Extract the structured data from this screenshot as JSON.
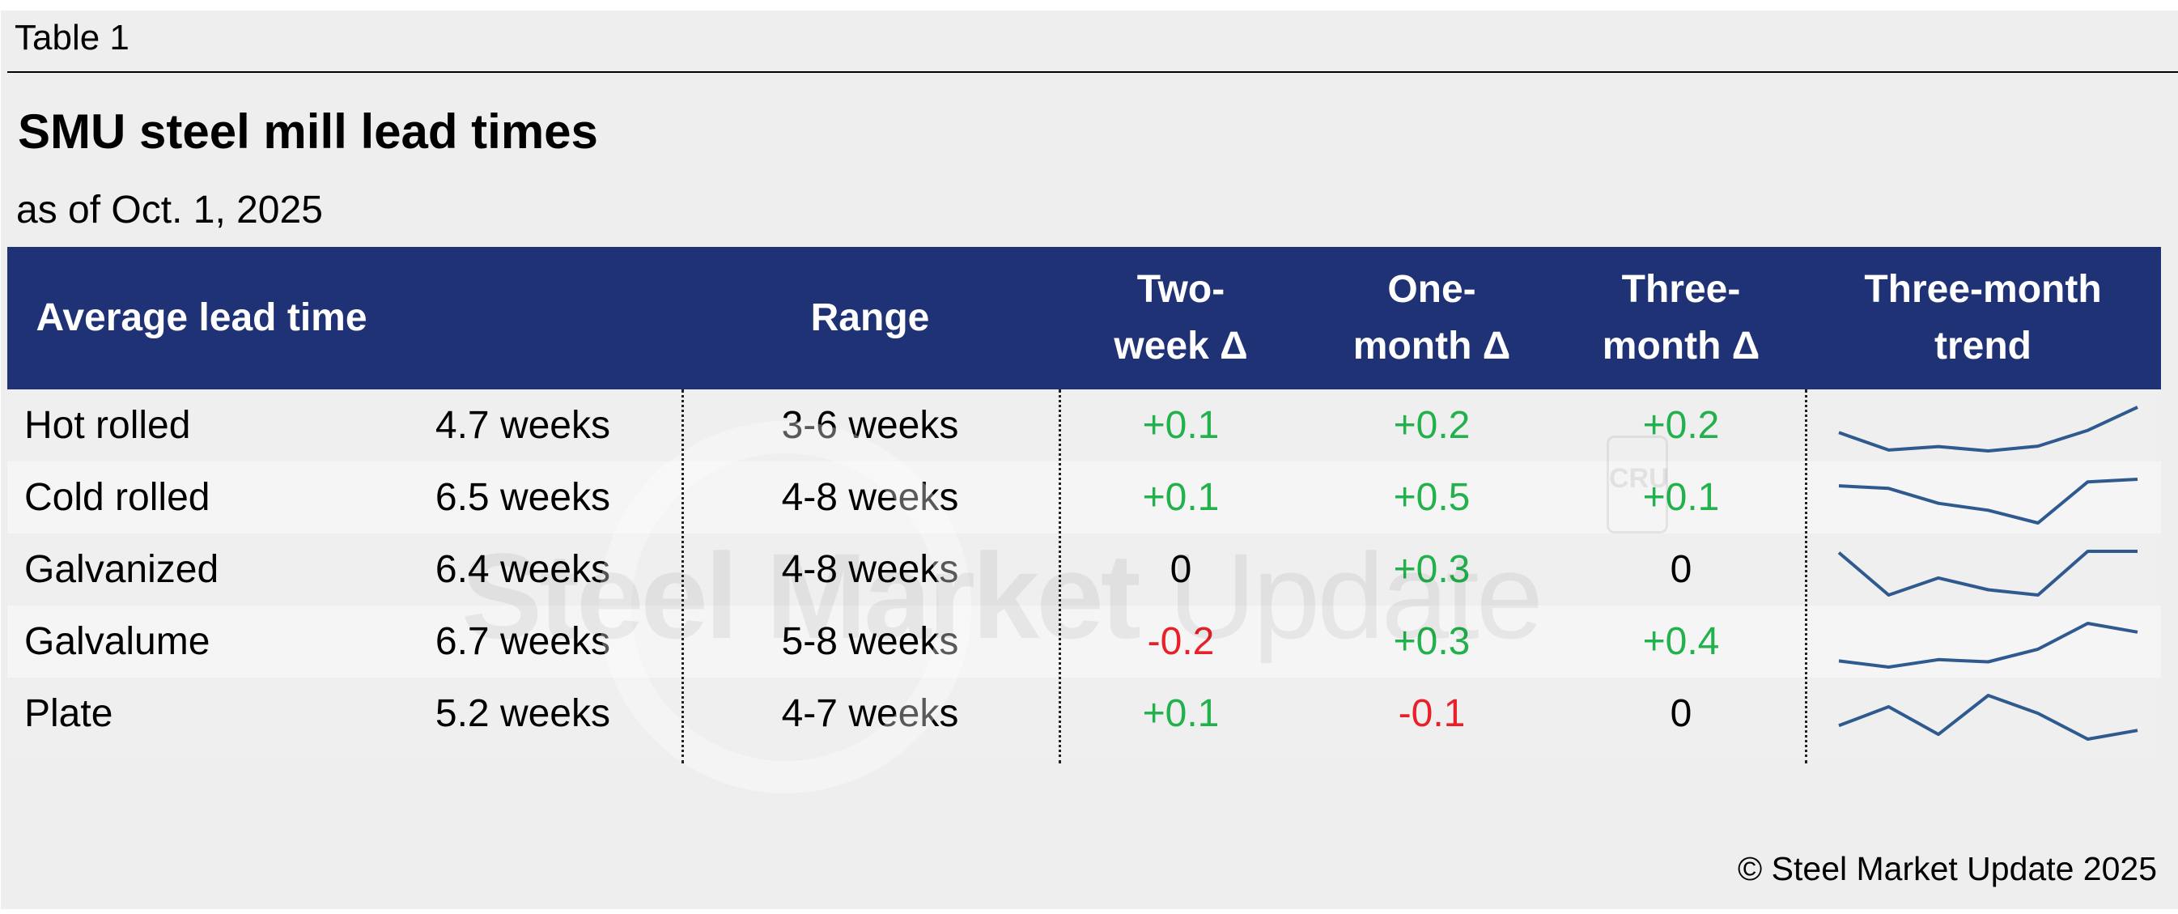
{
  "table_label": "Table 1",
  "title": "SMU steel mill lead times",
  "subtitle": "as of Oct. 1, 2025",
  "watermark": {
    "logo_text": "Steel Market Update",
    "logo_bold": "Steel Market",
    "logo_light": "Update",
    "badge": "CRU"
  },
  "headers": {
    "average": "Average lead time",
    "range": "Range",
    "two_week": [
      "Two-",
      "week Δ"
    ],
    "one_month": [
      "One-",
      "month Δ"
    ],
    "three_month": [
      "Three-",
      "month Δ"
    ],
    "trend": [
      "Three-month",
      "trend"
    ]
  },
  "colors": {
    "header_bg": "#203276",
    "positive": "#22b14c",
    "negative": "#e8202a",
    "sparkline": "#2f5a8f"
  },
  "rows": [
    {
      "product": "Hot rolled",
      "avg": "4.7 weeks",
      "range": "3-6 weeks",
      "two_week": "+0.1",
      "one_month": "+0.2",
      "three_month": "+0.2",
      "trend_relative": [
        0.42,
        0.02,
        0.1,
        0.0,
        0.11,
        0.47,
        1.0
      ]
    },
    {
      "product": "Cold rolled",
      "avg": "6.5 weeks",
      "range": "4-8 weeks",
      "two_week": "+0.1",
      "one_month": "+0.5",
      "three_month": "+0.1",
      "trend_relative": [
        0.85,
        0.79,
        0.45,
        0.29,
        0.0,
        0.94,
        1.0
      ]
    },
    {
      "product": "Galvanized",
      "avg": "6.4 weeks",
      "range": "4-8 weeks",
      "two_week": "0",
      "one_month": "+0.3",
      "three_month": "0",
      "trend_relative": [
        0.97,
        0.0,
        0.39,
        0.12,
        0.0,
        1.0,
        1.0
      ]
    },
    {
      "product": "Galvalume",
      "avg": "6.7 weeks",
      "range": "5-8 weeks",
      "two_week": "-0.2",
      "one_month": "+0.3",
      "three_month": "+0.4",
      "trend_relative": [
        0.14,
        0.0,
        0.17,
        0.12,
        0.41,
        1.0,
        0.8
      ]
    },
    {
      "product": "Plate",
      "avg": "5.2 weeks",
      "range": "4-7 weeks",
      "two_week": "+0.1",
      "one_month": "-0.1",
      "three_month": "0",
      "trend_relative": [
        0.31,
        0.74,
        0.11,
        1.0,
        0.59,
        0.0,
        0.2
      ]
    }
  ],
  "footer": "© Steel Market Update 2025"
}
